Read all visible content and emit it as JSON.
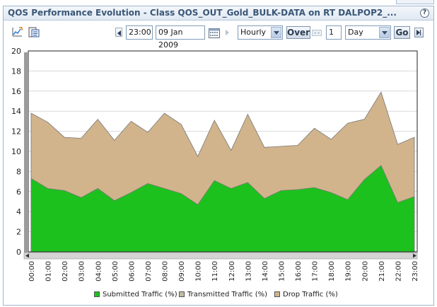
{
  "header": {
    "title": "QOS Performance Evolution - Class QOS_OUT_Gold_BULK-DATA on RT DALPOP2_..."
  },
  "toolbar": {
    "time_value": "23:00",
    "date_value": "09 Jan 2009",
    "granularity": "Hourly",
    "over_label": "Over",
    "span_count": "1",
    "span_unit": "Day",
    "go_label": "Go"
  },
  "icons": {
    "help": "?",
    "export": "chart-export-icon",
    "clipboard": "clipboard-icon",
    "calendar": "calendar-icon",
    "prev": "triangle-left-icon",
    "next": "triangle-right-icon"
  },
  "colors": {
    "submitted": "#1dc11d",
    "transmitted": "#c2bba3",
    "drop": "#d1b48c",
    "plot_bg": "#ffffff"
  },
  "chart_data": {
    "type": "area",
    "stacked": false,
    "categories": [
      "00:00",
      "01:00",
      "02:00",
      "03:00",
      "04:00",
      "05:00",
      "06:00",
      "07:00",
      "08:00",
      "09:00",
      "10:00",
      "11:00",
      "12:00",
      "13:00",
      "14:00",
      "15:00",
      "16:00",
      "17:00",
      "18:00",
      "19:00",
      "20:00",
      "21:00",
      "22:00",
      "23:00"
    ],
    "series": [
      {
        "name": "Drop Traffic (%)",
        "values": [
          13.8,
          12.9,
          11.4,
          11.3,
          13.2,
          11.1,
          13.0,
          11.9,
          13.8,
          12.7,
          9.5,
          13.1,
          10.1,
          13.7,
          10.4,
          10.5,
          10.6,
          12.3,
          11.2,
          12.8,
          13.2,
          15.9,
          10.7,
          11.4
        ]
      },
      {
        "name": "Submitted Traffic (%)",
        "values": [
          7.3,
          6.3,
          6.1,
          5.4,
          6.3,
          5.1,
          5.9,
          6.8,
          6.3,
          5.8,
          4.7,
          7.1,
          6.3,
          6.9,
          5.3,
          6.1,
          6.2,
          6.4,
          5.9,
          5.2,
          7.2,
          8.6,
          4.9,
          5.5
        ]
      }
    ],
    "legend": [
      "Submitted Traffic (%)",
      "Transmitted Traffic (%)",
      "Drop Traffic (%)"
    ],
    "ylim": [
      0,
      20
    ],
    "yticks": [
      0,
      2,
      4,
      6,
      8,
      10,
      12,
      14,
      16,
      18,
      20
    ],
    "legend_position": "bottom"
  }
}
